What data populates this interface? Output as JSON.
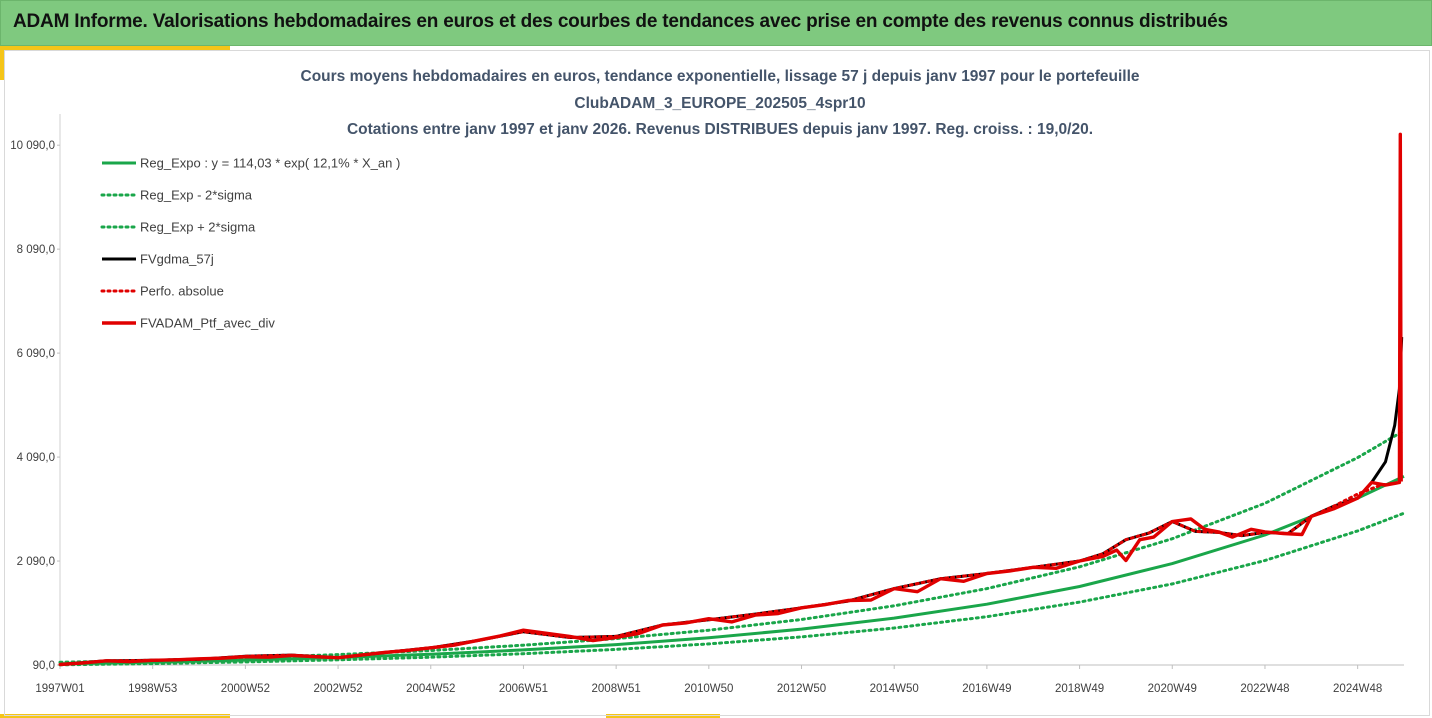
{
  "header": {
    "title": "ADAM Informe. Valorisations hebdomadaires en euros et des courbes de tendances avec prise en compte des revenus connus distribués"
  },
  "colors": {
    "header_bg": "#7fc97f",
    "accent": "#f5c518",
    "regression": "#1aa64a",
    "moving_average": "#000000",
    "portfolio": "#e00000"
  },
  "chart_data": {
    "type": "line",
    "title_lines": [
      "Cours moyens hebdomadaires en euros, tendance exponentielle, lissage 57 j depuis janv 1997 pour le portefeuille",
      "ClubADAM_3_EUROPE_202505_4spr10",
      "Cotations entre janv 1997 et janv 2026. Revenus DISTRIBUES depuis janv 1997. Reg. croiss. : 19,0/20."
    ],
    "xlabel": "",
    "ylabel": "",
    "x_ticks": [
      "1997W01",
      "1998W53",
      "2000W52",
      "2002W52",
      "2004W52",
      "2006W51",
      "2008W51",
      "2010W50",
      "2012W50",
      "2014W50",
      "2016W49",
      "2018W49",
      "2020W49",
      "2022W48",
      "2024W48"
    ],
    "x_tick_years": [
      1997.0,
      1999.0,
      2001.0,
      2003.0,
      2005.0,
      2007.0,
      2009.0,
      2011.0,
      2013.0,
      2015.0,
      2017.0,
      2019.0,
      2021.0,
      2023.0,
      2025.0
    ],
    "xlim": [
      1997.0,
      2026.0
    ],
    "y_ticks": [
      90,
      2090,
      4090,
      6090,
      8090,
      10090
    ],
    "y_tick_labels": [
      "90,0",
      "2 090,0",
      "4 090,0",
      "6 090,0",
      "8 090,0",
      "10 090,0"
    ],
    "ylim": [
      90,
      10690
    ],
    "grid": false,
    "legend_position": "top-left",
    "series": [
      {
        "name": "Reg_Expo : y = 114,03 * exp( 12,1% * X_an )",
        "style": "solid",
        "color": "#1aa64a",
        "x": [
          1997,
          1999,
          2001,
          2003,
          2005,
          2007,
          2009,
          2011,
          2013,
          2015,
          2017,
          2019,
          2021,
          2023,
          2025,
          2026
        ],
        "y": [
          114,
          145,
          185,
          235,
          298,
          380,
          482,
          614,
          780,
          992,
          1260,
          1600,
          2040,
          2590,
          3300,
          3720
        ]
      },
      {
        "name": "Reg_Exp - 2*sigma",
        "style": "dotted",
        "color": "#1aa64a",
        "x": [
          1997,
          1999,
          2001,
          2003,
          2005,
          2007,
          2009,
          2011,
          2013,
          2015,
          2017,
          2019,
          2021,
          2023,
          2025,
          2026
        ],
        "y": [
          93,
          117,
          150,
          190,
          241,
          307,
          390,
          496,
          630,
          802,
          1020,
          1300,
          1650,
          2100,
          2670,
          3010
        ]
      },
      {
        "name": "Reg_Exp + 2*sigma",
        "style": "dotted",
        "color": "#1aa64a",
        "x": [
          1997,
          1999,
          2001,
          2003,
          2005,
          2007,
          2009,
          2011,
          2013,
          2015,
          2017,
          2019,
          2021,
          2023,
          2025,
          2026
        ],
        "y": [
          141,
          180,
          229,
          291,
          369,
          470,
          597,
          759,
          965,
          1228,
          1560,
          1980,
          2520,
          3200,
          4080,
          4600
        ]
      },
      {
        "name": "FVgdma_57j",
        "style": "solid",
        "color": "#000000",
        "x": [
          1997.0,
          1998.0,
          1999.0,
          2000.0,
          2001.0,
          2002.0,
          2003.0,
          2004.0,
          2005.0,
          2006.0,
          2007.0,
          2008.0,
          2009.0,
          2010.0,
          2011.0,
          2012.0,
          2013.0,
          2014.0,
          2015.0,
          2016.0,
          2017.0,
          2018.0,
          2019.0,
          2019.5,
          2020.0,
          2020.5,
          2021.0,
          2021.5,
          2022.0,
          2022.5,
          2023.0,
          2023.5,
          2024.0,
          2024.5,
          2025.0,
          2025.3,
          2025.6,
          2025.8,
          2025.9,
          2025.95
        ],
        "y": [
          100,
          170,
          180,
          200,
          260,
          280,
          230,
          330,
          420,
          560,
          730,
          620,
          640,
          860,
          960,
          1070,
          1190,
          1320,
          1560,
          1750,
          1850,
          1970,
          2090,
          2230,
          2500,
          2630,
          2850,
          2660,
          2640,
          2580,
          2640,
          2620,
          2950,
          3150,
          3300,
          3600,
          4000,
          4700,
          5400,
          6400
        ]
      },
      {
        "name": "Perfo. absolue",
        "style": "dotted",
        "color": "#e00000",
        "x": [
          1997.0,
          1998.0,
          1999.0,
          2000.0,
          2001.0,
          2002.0,
          2003.0,
          2004.0,
          2005.0,
          2006.0,
          2007.0,
          2008.0,
          2009.0,
          2010.0,
          2011.0,
          2012.0,
          2013.0,
          2014.0,
          2015.0,
          2016.0,
          2017.0,
          2018.0,
          2019.0,
          2019.5,
          2020.0,
          2020.5,
          2021.0,
          2021.5,
          2022.0,
          2022.5,
          2023.0,
          2023.5,
          2024.0,
          2024.5,
          2025.0,
          2025.5,
          2025.9
        ],
        "y": [
          100,
          170,
          180,
          200,
          260,
          280,
          230,
          330,
          420,
          560,
          730,
          620,
          640,
          860,
          960,
          1070,
          1190,
          1320,
          1560,
          1750,
          1850,
          1970,
          2090,
          2230,
          2500,
          2630,
          2850,
          2660,
          2640,
          2580,
          2640,
          2620,
          2950,
          3150,
          3380,
          3550,
          3600
        ]
      },
      {
        "name": "FVADAM_Ptf_avec_div",
        "style": "solid-thick",
        "color": "#e00000",
        "x": [
          1997.0,
          1997.5,
          1998.0,
          1998.5,
          1999.0,
          1999.5,
          2000.0,
          2000.5,
          2001.0,
          2001.5,
          2002.0,
          2002.5,
          2003.0,
          2003.5,
          2004.0,
          2004.5,
          2005.0,
          2005.5,
          2006.0,
          2006.5,
          2007.0,
          2007.5,
          2008.0,
          2008.5,
          2009.0,
          2009.5,
          2010.0,
          2010.5,
          2011.0,
          2011.5,
          2012.0,
          2012.5,
          2013.0,
          2013.5,
          2014.0,
          2014.5,
          2015.0,
          2015.5,
          2016.0,
          2016.5,
          2017.0,
          2017.5,
          2018.0,
          2018.5,
          2019.0,
          2019.5,
          2019.8,
          2020.0,
          2020.3,
          2020.6,
          2021.0,
          2021.4,
          2021.7,
          2022.0,
          2022.3,
          2022.7,
          2023.0,
          2023.4,
          2023.8,
          2024.0,
          2024.5,
          2025.0,
          2025.3,
          2025.6,
          2025.9,
          2025.92,
          2025.94
        ],
        "y": [
          100,
          130,
          170,
          155,
          180,
          190,
          210,
          220,
          250,
          240,
          275,
          250,
          230,
          280,
          330,
          370,
          420,
          470,
          560,
          650,
          760,
          700,
          640,
          560,
          620,
          700,
          860,
          900,
          980,
          920,
          1050,
          1080,
          1190,
          1250,
          1330,
          1340,
          1560,
          1500,
          1750,
          1700,
          1850,
          1900,
          1970,
          1950,
          2090,
          2180,
          2300,
          2100,
          2500,
          2550,
          2850,
          2900,
          2700,
          2650,
          2550,
          2700,
          2650,
          2620,
          2600,
          2950,
          3100,
          3300,
          3600,
          3550,
          3600,
          10300,
          3620
        ]
      }
    ]
  }
}
